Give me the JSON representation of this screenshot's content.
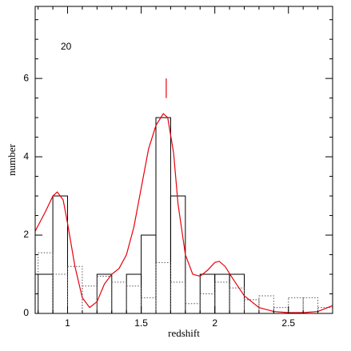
{
  "chart_data": {
    "type": "histogram",
    "xlabel": "redshift",
    "ylabel": "number",
    "annotation": {
      "text": "20",
      "x": 0.99,
      "y": 6.8
    },
    "marker": {
      "x": 1.67,
      "y": [
        5.5,
        6.0
      ],
      "color": "#e8000b"
    },
    "xlim": [
      0.78,
      2.8
    ],
    "ylim": [
      0,
      7.84
    ],
    "xticks": [
      1,
      1.5,
      2,
      2.5
    ],
    "yticks": [
      0,
      2,
      4,
      6
    ],
    "xminorticks": [
      0.8,
      0.9,
      1.1,
      1.2,
      1.3,
      1.4,
      1.6,
      1.7,
      1.8,
      1.9,
      2.1,
      2.2,
      2.3,
      2.4,
      2.6,
      2.7
    ],
    "yminorticks": [
      0.5,
      1,
      1.5,
      2.5,
      3,
      3.5,
      4.5,
      5,
      5.5,
      6.5,
      7,
      7.5
    ],
    "series": [
      {
        "style": "solid",
        "color": "#000000",
        "bins": [
          0.8,
          0.9,
          1.0,
          1.1,
          1.2,
          1.3,
          1.4,
          1.5,
          1.6,
          1.7,
          1.8,
          1.9,
          2.0,
          2.1,
          2.2
        ],
        "values": [
          1,
          3,
          0,
          0,
          1,
          0,
          1,
          2,
          5,
          3,
          0,
          1,
          1,
          1
        ]
      },
      {
        "style": "dotted",
        "color": "#555555",
        "bins": [
          0.8,
          0.9,
          1.0,
          1.1,
          1.2,
          1.3,
          1.4,
          1.5,
          1.6,
          1.7,
          1.8,
          1.9,
          2.0,
          2.1,
          2.2,
          2.3,
          2.4,
          2.5,
          2.6,
          2.7,
          2.8
        ],
        "values": [
          1.55,
          1.0,
          1.2,
          0.7,
          0.95,
          0.8,
          0.7,
          0.4,
          1.3,
          0.8,
          0.25,
          0.5,
          0.8,
          0.65,
          0.35,
          0.45,
          0.15,
          0.4,
          0.4,
          0.15
        ]
      }
    ],
    "curve": {
      "color": "#e8000b",
      "x": [
        0.78,
        0.85,
        0.9,
        0.93,
        0.97,
        1.0,
        1.05,
        1.1,
        1.15,
        1.2,
        1.25,
        1.3,
        1.35,
        1.4,
        1.45,
        1.5,
        1.55,
        1.6,
        1.65,
        1.68,
        1.72,
        1.75,
        1.8,
        1.85,
        1.9,
        1.95,
        2.0,
        2.03,
        2.07,
        2.12,
        2.2,
        2.3,
        2.4,
        2.5,
        2.6,
        2.7,
        2.8
      ],
      "y": [
        2.1,
        2.6,
        3.0,
        3.1,
        2.9,
        2.3,
        1.2,
        0.4,
        0.15,
        0.3,
        0.75,
        1.0,
        1.15,
        1.5,
        2.2,
        3.2,
        4.2,
        4.8,
        5.1,
        5.0,
        4.1,
        2.8,
        1.5,
        1.0,
        0.95,
        1.1,
        1.3,
        1.33,
        1.2,
        0.9,
        0.45,
        0.15,
        0.05,
        0.02,
        0.02,
        0.05,
        0.2
      ]
    }
  }
}
